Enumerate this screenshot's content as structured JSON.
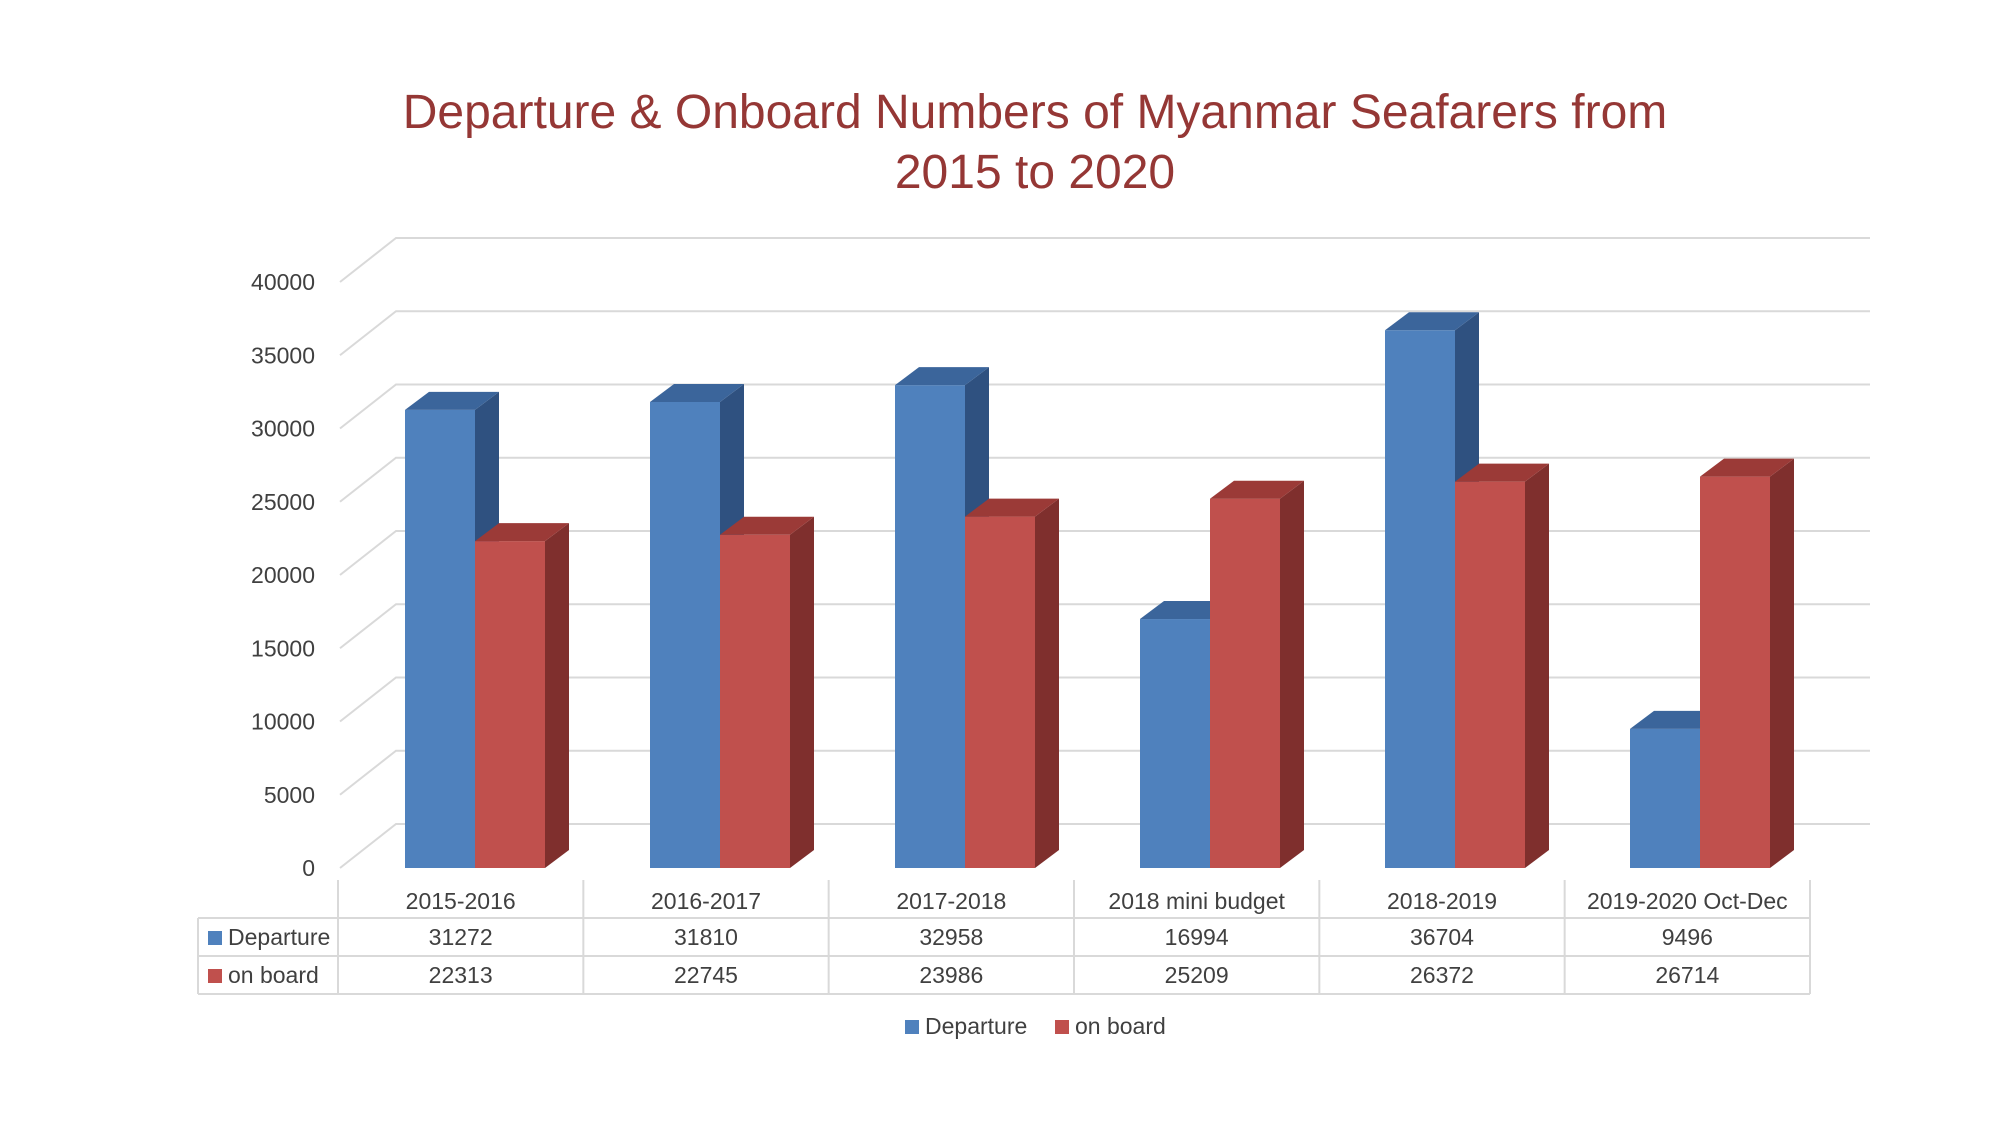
{
  "chart_data": {
    "type": "bar",
    "title_lines": [
      "Departure & Onboard Numbers of Myanmar Seafarers from",
      "2015 to 2020"
    ],
    "categories": [
      "2015-2016",
      "2016-2017",
      "2017-2018",
      "2018 mini budget",
      "2018-2019",
      "2019-2020 Oct-Dec"
    ],
    "series": [
      {
        "name": "Departure",
        "values": [
          31272,
          31810,
          32958,
          16994,
          36704,
          9496
        ],
        "color": "#4f81bd",
        "side_color": "#2f5180",
        "top_color": "#3b659b"
      },
      {
        "name": "on board",
        "values": [
          22313,
          22745,
          23986,
          25209,
          26372,
          26714
        ],
        "color": "#c0504d",
        "side_color": "#7f2f2d",
        "top_color": "#9b3a37"
      }
    ],
    "yticks": [
      0,
      5000,
      10000,
      15000,
      20000,
      25000,
      30000,
      35000,
      40000
    ],
    "ylim": [
      0,
      40000
    ],
    "xlabel": "",
    "ylabel": "",
    "grid": true,
    "data_table": true,
    "legend_position": "bottom"
  }
}
